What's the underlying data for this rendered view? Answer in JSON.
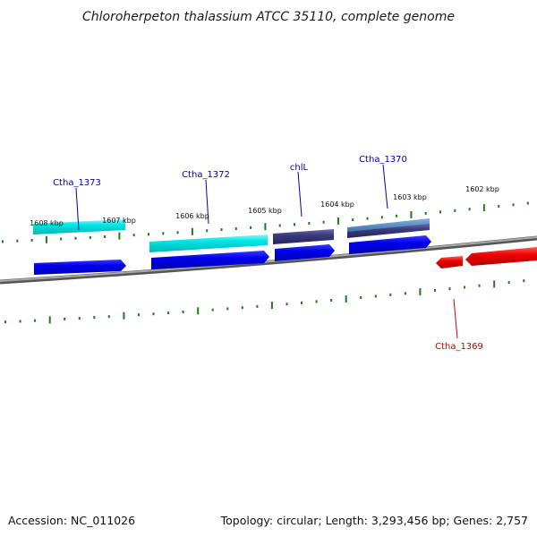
{
  "title": "Chloroherpeton thalassium ATCC 35110, complete genome",
  "footer": {
    "accession": "Accession: NC_011026",
    "summary": "Topology: circular; Length: 3,293,456 bp; Genes: 2,757"
  },
  "colors": {
    "backbone": "#7a7a7a",
    "tick": "#1f7a1f",
    "label_forward": "#0000aa",
    "label_reverse": "#cc0000",
    "cyan_gene": "#00e5e5",
    "blue_cds": "#0000ee",
    "dark_gene": "#3a3a7a",
    "red_cds": "#ee0000"
  },
  "scale_labels": [
    "1608 kbp",
    "1607 kbp",
    "1606 kbp",
    "1605 kbp",
    "1604 kbp",
    "1603 kbp",
    "1602 kbp"
  ],
  "genes": [
    {
      "name": "Ctha_1373",
      "strand": "reverse-outer",
      "color": "label_forward"
    },
    {
      "name": "Ctha_1372",
      "strand": "reverse-outer",
      "color": "label_forward"
    },
    {
      "name": "chlL",
      "strand": "reverse-outer",
      "color": "label_forward"
    },
    {
      "name": "Ctha_1370",
      "strand": "reverse-outer",
      "color": "label_forward"
    },
    {
      "name": "Ctha_1369",
      "strand": "forward-inner",
      "color": "label_reverse"
    }
  ]
}
